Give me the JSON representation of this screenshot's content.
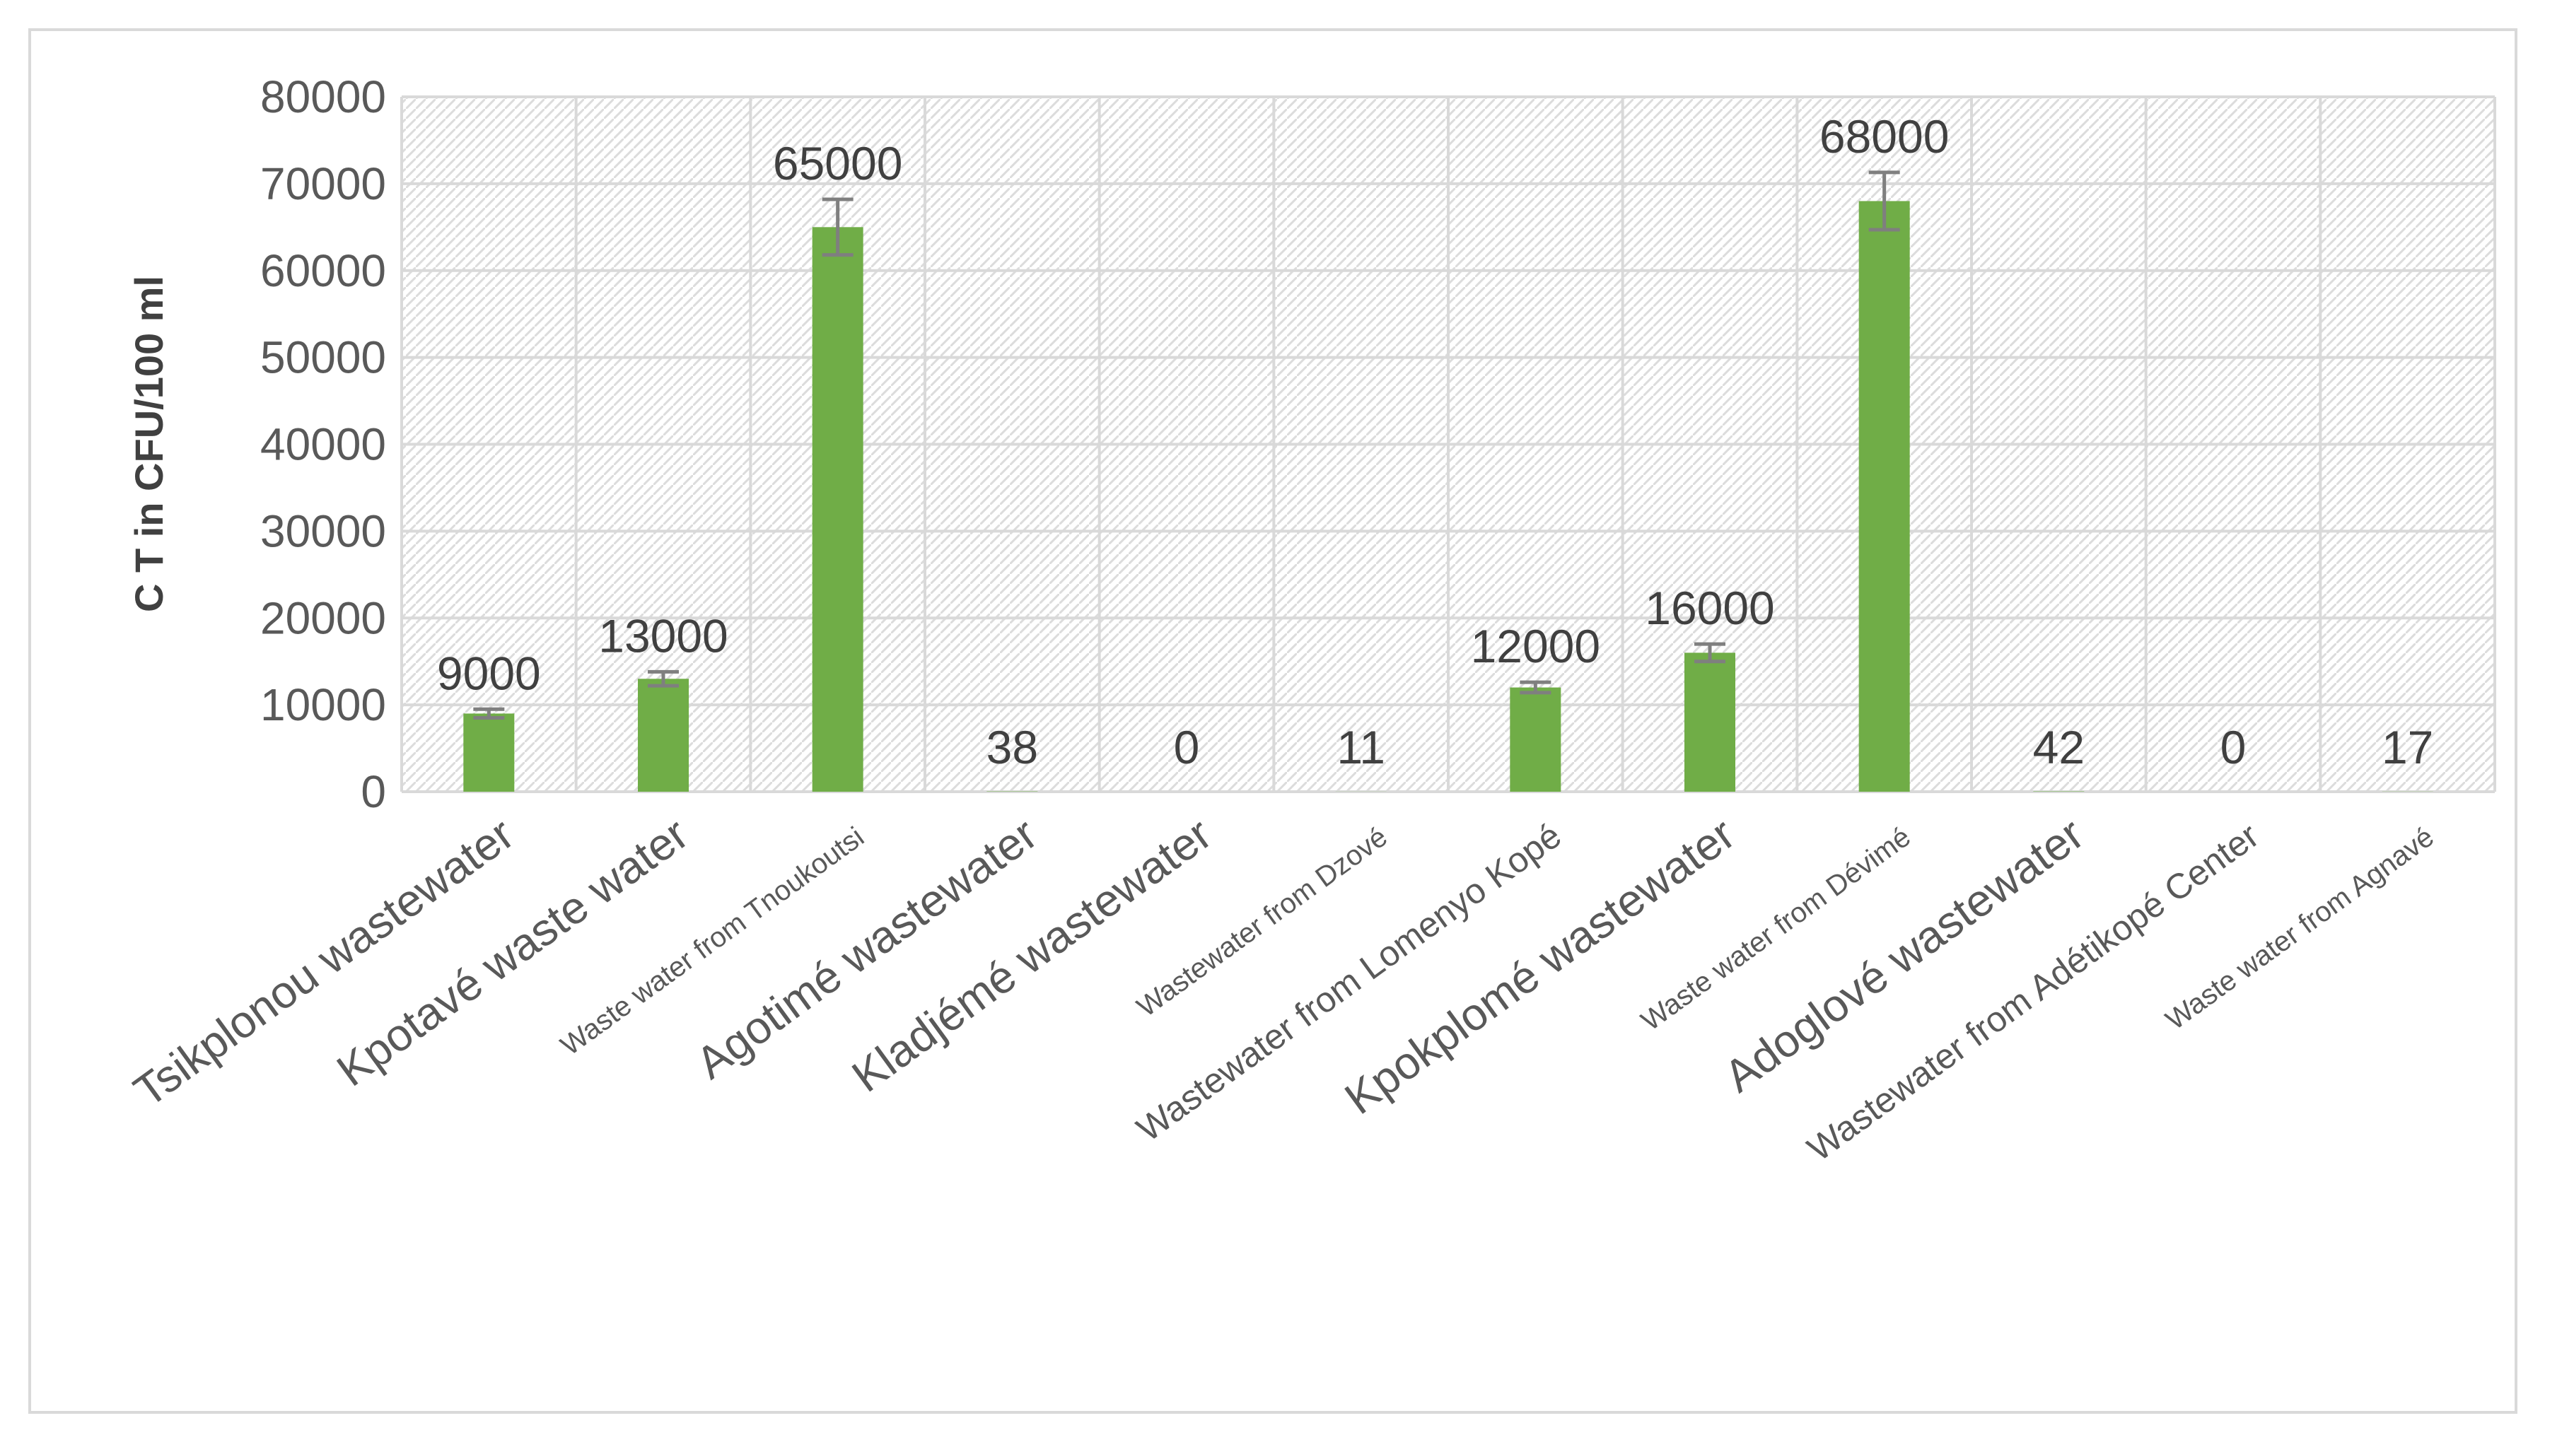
{
  "chart_data": {
    "type": "bar",
    "title": "",
    "xlabel": "",
    "ylabel": "C T in CFU/100 ml",
    "ylim": [
      0,
      80000
    ],
    "yticks": [
      0,
      10000,
      20000,
      30000,
      40000,
      50000,
      60000,
      70000,
      80000
    ],
    "grid": true,
    "legend": "none",
    "categories": [
      "Tsikplonou wastewater",
      "Kpotavé waste water",
      "Waste water from Tnoukoutsi",
      "Agotimé wastewater",
      "Kladjémé wastewater",
      "Wastewater from Dzové",
      "Wastewater from Lomenyo Kopé",
      "Kpokplomé wastewater",
      "Waste water from Dévimé",
      "Adoglové wastewater",
      "Wastewater from Adétikopé Center",
      "Waste water from Agnavé"
    ],
    "category_label_style": [
      "large",
      "large",
      "small",
      "large",
      "large",
      "small",
      "medium",
      "large",
      "small",
      "large",
      "medium",
      "small"
    ],
    "series": [
      {
        "values": [
          9000,
          13000,
          65000,
          38,
          0,
          11,
          12000,
          16000,
          68000,
          42,
          0,
          17
        ],
        "error": [
          500,
          800,
          3200,
          0,
          0,
          0,
          600,
          1000,
          3300,
          0,
          0,
          0
        ],
        "color": "#70ad47"
      }
    ],
    "data_labels": [
      "9000",
      "13000",
      "65000",
      "38",
      "0",
      "11",
      "12000",
      "16000",
      "68000",
      "42",
      "0",
      "17"
    ],
    "colors": {
      "bar": "#70ad47",
      "error_bar": "#7f7f7f",
      "grid": "#d9d9d9",
      "hatch": "#d9d9d9",
      "text": "#595959"
    }
  }
}
